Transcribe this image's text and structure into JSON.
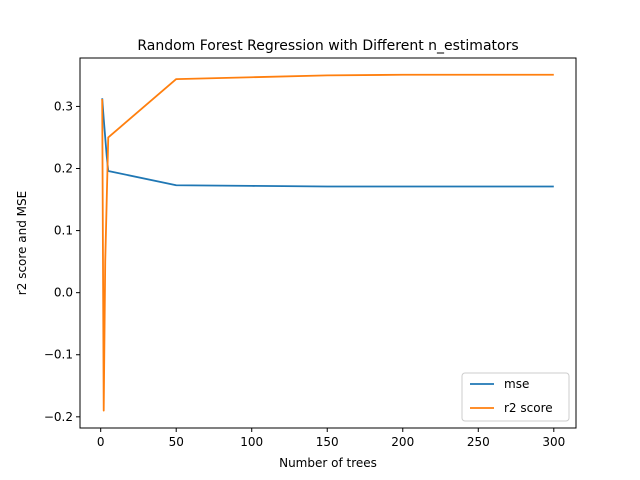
{
  "chart_data": {
    "type": "line",
    "title": "Random Forest Regression with Different n_estimators",
    "xlabel": "Number of trees",
    "ylabel": "r2 score and MSE",
    "xlim": [
      -13.7,
      314.7
    ],
    "ylim": [
      -0.218,
      0.378
    ],
    "xticks": [
      0,
      50,
      100,
      150,
      200,
      250,
      300
    ],
    "xtick_labels": [
      "0",
      "50",
      "100",
      "150",
      "200",
      "250",
      "300"
    ],
    "yticks": [
      -0.2,
      -0.1,
      0.0,
      0.1,
      0.2,
      0.3
    ],
    "ytick_labels": [
      "−0.2",
      "−0.1",
      "0.0",
      "0.1",
      "0.2",
      "0.3"
    ],
    "grid": false,
    "legend_position": "lower-right",
    "series": [
      {
        "name": "mse",
        "color": "#1f77b4",
        "x": [
          1,
          2,
          3,
          4,
          5,
          50,
          100,
          150,
          200,
          250,
          300
        ],
        "y": [
          0.313,
          0.28,
          0.25,
          0.22,
          0.196,
          0.173,
          0.172,
          0.171,
          0.171,
          0.171,
          0.171
        ]
      },
      {
        "name": "r2 score",
        "color": "#ff7f0e",
        "x": [
          1,
          2,
          3,
          4,
          5,
          50,
          100,
          150,
          200,
          250,
          300
        ],
        "y": [
          0.312,
          -0.19,
          0.05,
          0.15,
          0.25,
          0.344,
          0.347,
          0.35,
          0.351,
          0.351,
          0.351
        ]
      }
    ]
  }
}
